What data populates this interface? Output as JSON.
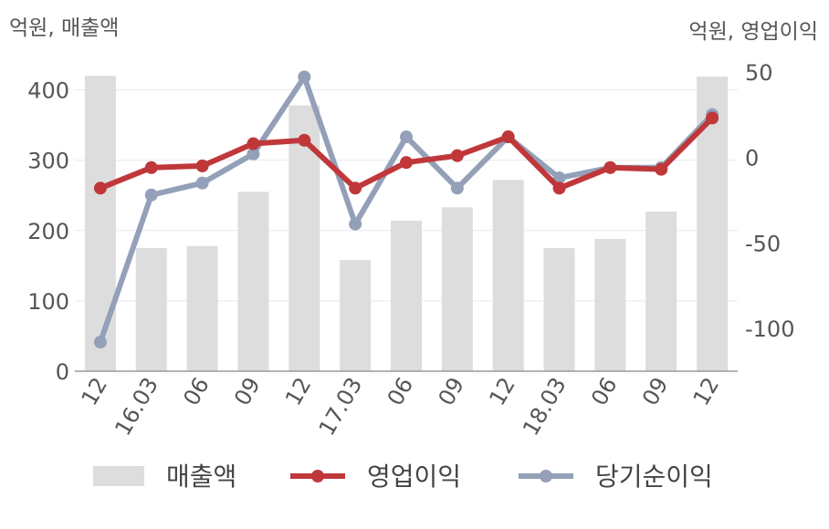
{
  "chart_data": {
    "type": "bar+line",
    "left_axis_unit": "억원, 매출액",
    "right_axis_unit": "억원, 영업이익",
    "categories": [
      "12",
      "16.03",
      "06",
      "09",
      "12",
      "17.03",
      "06",
      "09",
      "12",
      "18.03",
      "06",
      "09",
      "12"
    ],
    "y_left": {
      "min": 0,
      "max": 450,
      "ticks": [
        0,
        100,
        200,
        300,
        400
      ],
      "tick_labels": [
        "0",
        "100",
        "200",
        "300",
        "400"
      ]
    },
    "y_right": {
      "min": -125,
      "max": 60,
      "ticks": [
        -100,
        -50,
        0,
        50
      ],
      "tick_labels": [
        "-100",
        "-50",
        "0",
        "50"
      ]
    },
    "grid": true,
    "series": [
      {
        "name": "매출액",
        "type": "bar",
        "axis": "left",
        "color": "#dddddd",
        "values": [
          420,
          175,
          178,
          255,
          378,
          158,
          214,
          233,
          272,
          175,
          188,
          227,
          419
        ]
      },
      {
        "name": "영업이익",
        "type": "line",
        "axis": "right",
        "color": "#c0373a",
        "values": [
          -18,
          -6,
          -5,
          8,
          10,
          -18,
          -3,
          1,
          12,
          -18,
          -6,
          -7,
          23
        ]
      },
      {
        "name": "당기순이익",
        "type": "line",
        "axis": "right",
        "color": "#93a0b8",
        "values": [
          -108,
          -22,
          -15,
          2,
          47,
          -39,
          12,
          -18,
          12,
          -12,
          -6,
          -6,
          25
        ]
      }
    ],
    "legend": {
      "position": "bottom",
      "items": [
        {
          "label": "매출액",
          "kind": "bar",
          "color": "#dddddd"
        },
        {
          "label": "영업이익",
          "kind": "line",
          "color": "#c0373a"
        },
        {
          "label": "당기순이익",
          "kind": "line",
          "color": "#93a0b8"
        }
      ]
    }
  }
}
